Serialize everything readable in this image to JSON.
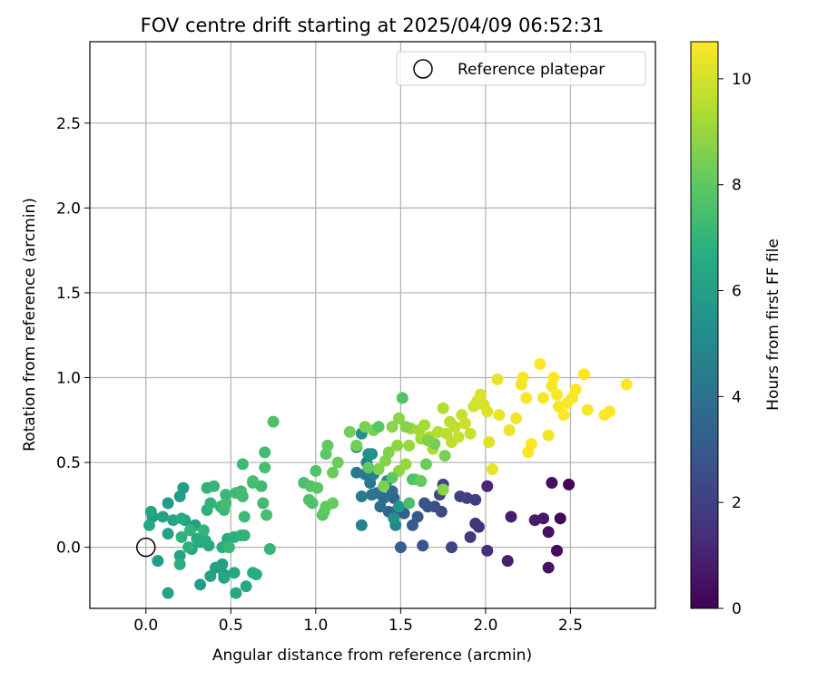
{
  "chart_data": {
    "type": "scatter",
    "title": "FOV centre drift starting at 2025/04/09 06:52:31",
    "xlabel": "Angular distance from reference (arcmin)",
    "ylabel": "Rotation from reference (arcmin)",
    "xlim": [
      -0.33,
      3.0
    ],
    "ylim": [
      -0.36,
      2.98
    ],
    "xticks": [
      0.0,
      0.5,
      1.0,
      1.5,
      2.0,
      2.5
    ],
    "xtick_labels": [
      "0.0",
      "0.5",
      "1.0",
      "1.5",
      "2.0",
      "2.5"
    ],
    "yticks": [
      0.0,
      0.5,
      1.0,
      1.5,
      2.0,
      2.5
    ],
    "ytick_labels": [
      "0.0",
      "0.5",
      "1.0",
      "1.5",
      "2.0",
      "2.5"
    ],
    "grid": true,
    "legend": {
      "position": "top-right",
      "entries": [
        {
          "label": "Reference platepar",
          "marker": "open-circle",
          "color": "#000000"
        }
      ]
    },
    "reference_point": {
      "x": 0.0,
      "y": 0.0
    },
    "colorbar": {
      "label": "Hours from first FF file",
      "range": [
        0,
        10.7
      ],
      "ticks": [
        0,
        2,
        4,
        6,
        8,
        10
      ],
      "tick_labels": [
        "0",
        "2",
        "4",
        "6",
        "8",
        "10"
      ],
      "colormap": "viridis"
    },
    "points": [
      [
        2.49,
        0.37,
        0.1
      ],
      [
        2.44,
        0.17,
        0.2
      ],
      [
        2.42,
        -0.02,
        0.3
      ],
      [
        2.39,
        0.38,
        0.4
      ],
      [
        2.37,
        0.09,
        0.5
      ],
      [
        2.37,
        -0.12,
        0.6
      ],
      [
        2.34,
        0.17,
        0.7
      ],
      [
        2.29,
        0.16,
        0.8
      ],
      [
        2.15,
        0.18,
        0.9
      ],
      [
        2.13,
        -0.08,
        1.0
      ],
      [
        2.01,
        0.36,
        1.2
      ],
      [
        2.01,
        -0.02,
        1.4
      ],
      [
        1.96,
        0.12,
        1.5
      ],
      [
        1.94,
        0.14,
        1.6
      ],
      [
        1.91,
        0.06,
        1.8
      ],
      [
        1.94,
        0.28,
        1.9
      ],
      [
        1.89,
        0.29,
        2.0
      ],
      [
        1.85,
        0.3,
        2.1
      ],
      [
        1.8,
        0.0,
        2.2
      ],
      [
        1.75,
        0.37,
        2.3
      ],
      [
        1.74,
        0.21,
        2.4
      ],
      [
        1.73,
        0.31,
        2.5
      ],
      [
        1.7,
        0.24,
        2.6
      ],
      [
        1.66,
        0.24,
        2.7
      ],
      [
        1.64,
        0.26,
        2.8
      ],
      [
        1.63,
        0.01,
        2.9
      ],
      [
        1.6,
        0.18,
        3.0
      ],
      [
        1.57,
        0.13,
        3.1
      ],
      [
        1.52,
        0.2,
        3.2
      ],
      [
        1.5,
        0.0,
        3.3
      ],
      [
        1.48,
        0.22,
        3.4
      ],
      [
        1.46,
        0.29,
        3.5
      ],
      [
        1.43,
        0.21,
        3.6
      ],
      [
        1.45,
        0.33,
        3.7
      ],
      [
        1.4,
        0.29,
        3.8
      ],
      [
        1.38,
        0.24,
        3.9
      ],
      [
        1.36,
        0.32,
        4.0
      ],
      [
        1.33,
        0.31,
        4.1
      ],
      [
        1.32,
        0.38,
        4.2
      ],
      [
        1.29,
        0.43,
        4.3
      ],
      [
        1.24,
        0.44,
        4.4
      ],
      [
        1.27,
        0.3,
        4.5
      ],
      [
        1.3,
        0.5,
        4.6
      ],
      [
        1.34,
        0.43,
        4.7
      ],
      [
        1.27,
        0.13,
        4.8
      ],
      [
        1.47,
        0.13,
        4.9
      ],
      [
        1.42,
        0.39,
        5.0
      ],
      [
        1.33,
        0.55,
        5.1
      ],
      [
        1.24,
        0.59,
        5.2
      ],
      [
        1.27,
        0.67,
        5.3
      ],
      [
        1.31,
        0.55,
        5.4
      ],
      [
        1.46,
        0.17,
        5.5
      ],
      [
        1.49,
        0.24,
        5.6
      ],
      [
        0.04,
        0.18,
        5.7
      ],
      [
        0.13,
        0.26,
        5.8
      ],
      [
        0.2,
        0.3,
        5.9
      ],
      [
        0.22,
        0.35,
        6.0
      ],
      [
        0.29,
        0.13,
        6.1
      ],
      [
        0.23,
        0.16,
        6.2
      ],
      [
        0.16,
        0.16,
        6.3
      ],
      [
        0.13,
        0.08,
        6.1
      ],
      [
        0.2,
        -0.05,
        6.2
      ],
      [
        0.27,
        -0.01,
        6.3
      ],
      [
        0.32,
        0.03,
        6.4
      ],
      [
        0.37,
        0.01,
        6.5
      ],
      [
        0.35,
        0.04,
        6.6
      ],
      [
        0.41,
        -0.12,
        6.0
      ],
      [
        0.45,
        -0.1,
        6.1
      ],
      [
        0.46,
        -0.16,
        6.2
      ],
      [
        0.52,
        -0.15,
        6.3
      ],
      [
        0.53,
        -0.27,
        6.4
      ],
      [
        0.59,
        -0.23,
        6.5
      ],
      [
        0.63,
        -0.15,
        6.6
      ],
      [
        0.65,
        -0.16,
        6.7
      ],
      [
        0.45,
        0.0,
        6.6
      ],
      [
        0.48,
        0.05,
        6.7
      ],
      [
        0.52,
        0.06,
        6.8
      ],
      [
        0.56,
        0.07,
        6.9
      ],
      [
        0.58,
        0.07,
        7.0
      ],
      [
        0.73,
        -0.01,
        7.1
      ],
      [
        0.07,
        -0.08,
        5.9
      ],
      [
        0.13,
        -0.27,
        6.2
      ],
      [
        0.32,
        -0.22,
        6.0
      ],
      [
        0.38,
        -0.17,
        6.1
      ],
      [
        0.46,
        -0.18,
        6.3
      ],
      [
        0.1,
        0.18,
        6.2
      ],
      [
        0.03,
        0.21,
        6.3
      ],
      [
        0.02,
        0.13,
        6.5
      ],
      [
        0.21,
        0.17,
        6.6
      ],
      [
        0.2,
        -0.1,
        6.8
      ],
      [
        0.25,
        0.0,
        6.9
      ],
      [
        0.3,
        0.05,
        6.7
      ],
      [
        0.36,
        0.22,
        6.9
      ],
      [
        0.38,
        0.26,
        7.0
      ],
      [
        0.44,
        0.24,
        7.1
      ],
      [
        0.47,
        0.31,
        7.2
      ],
      [
        0.53,
        0.32,
        7.3
      ],
      [
        0.56,
        0.33,
        7.4
      ],
      [
        0.57,
        0.3,
        7.4
      ],
      [
        0.63,
        0.38,
        7.3
      ],
      [
        0.57,
        0.49,
        7.2
      ],
      [
        0.68,
        0.36,
        7.3
      ],
      [
        0.69,
        0.26,
        7.4
      ],
      [
        0.7,
        0.47,
        7.5
      ],
      [
        0.7,
        0.56,
        7.4
      ],
      [
        0.71,
        0.19,
        7.5
      ],
      [
        0.75,
        0.74,
        7.7
      ],
      [
        0.49,
        0.0,
        7.2
      ],
      [
        0.36,
        0.35,
        7.0
      ],
      [
        0.4,
        0.36,
        7.1
      ],
      [
        0.46,
        0.22,
        7.2
      ],
      [
        0.58,
        0.18,
        7.3
      ],
      [
        0.47,
        0.26,
        7.4
      ],
      [
        0.21,
        0.06,
        6.9
      ],
      [
        0.26,
        0.1,
        7.0
      ],
      [
        0.34,
        0.1,
        7.1
      ],
      [
        0.63,
        0.39,
        7.5
      ],
      [
        0.93,
        0.38,
        7.6
      ],
      [
        0.96,
        0.28,
        7.7
      ],
      [
        0.98,
        0.26,
        7.7
      ],
      [
        0.97,
        0.36,
        7.8
      ],
      [
        1.0,
        0.45,
        7.8
      ],
      [
        1.01,
        0.35,
        7.9
      ],
      [
        1.04,
        0.19,
        7.9
      ],
      [
        1.05,
        0.21,
        8.0
      ],
      [
        1.06,
        0.55,
        8.0
      ],
      [
        1.07,
        0.6,
        8.1
      ],
      [
        1.06,
        0.24,
        8.1
      ],
      [
        1.1,
        0.26,
        8.2
      ],
      [
        1.13,
        0.5,
        8.3
      ],
      [
        1.1,
        0.44,
        8.3
      ],
      [
        1.2,
        0.68,
        8.4
      ],
      [
        1.24,
        0.6,
        8.4
      ],
      [
        1.29,
        0.71,
        8.5
      ],
      [
        1.34,
        0.69,
        8.5
      ],
      [
        1.37,
        0.46,
        8.6
      ],
      [
        1.4,
        0.36,
        8.6
      ],
      [
        1.41,
        0.51,
        8.7
      ],
      [
        1.43,
        0.56,
        8.7
      ],
      [
        1.45,
        0.71,
        8.8
      ],
      [
        1.49,
        0.76,
        8.8
      ],
      [
        1.48,
        0.6,
        8.9
      ],
      [
        1.49,
        0.45,
        8.9
      ],
      [
        1.53,
        0.49,
        9.0
      ],
      [
        1.55,
        0.6,
        9.0
      ],
      [
        1.56,
        0.7,
        9.1
      ],
      [
        1.59,
        0.4,
        9.1
      ],
      [
        1.61,
        0.69,
        9.2
      ],
      [
        1.62,
        0.64,
        9.2
      ],
      [
        1.64,
        0.72,
        9.3
      ],
      [
        1.65,
        0.64,
        9.3
      ],
      [
        1.67,
        0.65,
        9.4
      ],
      [
        1.69,
        0.58,
        9.4
      ],
      [
        1.72,
        0.68,
        9.5
      ],
      [
        1.75,
        0.82,
        9.5
      ],
      [
        1.77,
        0.67,
        9.6
      ],
      [
        1.79,
        0.74,
        9.6
      ],
      [
        1.8,
        0.62,
        9.7
      ],
      [
        1.82,
        0.71,
        9.7
      ],
      [
        1.84,
        0.65,
        9.8
      ],
      [
        1.86,
        0.78,
        9.8
      ],
      [
        1.88,
        0.73,
        9.9
      ],
      [
        1.91,
        0.67,
        9.9
      ],
      [
        1.93,
        0.83,
        10.0
      ],
      [
        1.95,
        0.86,
        10.0
      ],
      [
        1.97,
        0.9,
        10.1
      ],
      [
        1.99,
        0.84,
        10.1
      ],
      [
        2.01,
        0.8,
        10.2
      ],
      [
        2.02,
        0.62,
        10.2
      ],
      [
        2.04,
        0.46,
        10.3
      ],
      [
        2.07,
        0.99,
        10.3
      ],
      [
        2.08,
        0.78,
        10.4
      ],
      [
        2.14,
        0.69,
        10.4
      ],
      [
        2.18,
        0.76,
        10.5
      ],
      [
        2.21,
        0.96,
        10.5
      ],
      [
        2.22,
        1.0,
        10.6
      ],
      [
        2.24,
        0.88,
        10.6
      ],
      [
        2.25,
        0.56,
        10.7
      ],
      [
        2.27,
        0.61,
        10.7
      ],
      [
        2.32,
        1.08,
        10.7
      ],
      [
        2.34,
        0.88,
        10.6
      ],
      [
        2.37,
        0.66,
        10.5
      ],
      [
        2.39,
        0.95,
        10.6
      ],
      [
        2.4,
        1.0,
        10.7
      ],
      [
        2.42,
        0.9,
        10.7
      ],
      [
        2.43,
        0.83,
        10.6
      ],
      [
        2.46,
        0.78,
        10.7
      ],
      [
        2.48,
        0.85,
        10.7
      ],
      [
        2.51,
        0.88,
        10.6
      ],
      [
        2.53,
        0.93,
        10.7
      ],
      [
        2.58,
        1.02,
        10.7
      ],
      [
        2.6,
        0.81,
        10.6
      ],
      [
        2.7,
        0.78,
        10.7
      ],
      [
        2.73,
        0.8,
        10.7
      ],
      [
        2.83,
        0.96,
        10.7
      ],
      [
        1.55,
        0.26,
        7.6
      ],
      [
        1.57,
        0.4,
        7.7
      ],
      [
        1.51,
        0.88,
        7.8
      ],
      [
        1.37,
        0.71,
        7.9
      ],
      [
        1.45,
        0.41,
        8.0
      ],
      [
        1.31,
        0.47,
        8.1
      ],
      [
        1.62,
        0.39,
        8.2
      ],
      [
        1.65,
        0.49,
        8.3
      ],
      [
        1.7,
        0.61,
        8.4
      ],
      [
        1.76,
        0.54,
        8.5
      ],
      [
        1.66,
        0.63,
        8.6
      ],
      [
        1.53,
        0.71,
        8.7
      ],
      [
        1.75,
        0.34,
        8.8
      ]
    ]
  }
}
